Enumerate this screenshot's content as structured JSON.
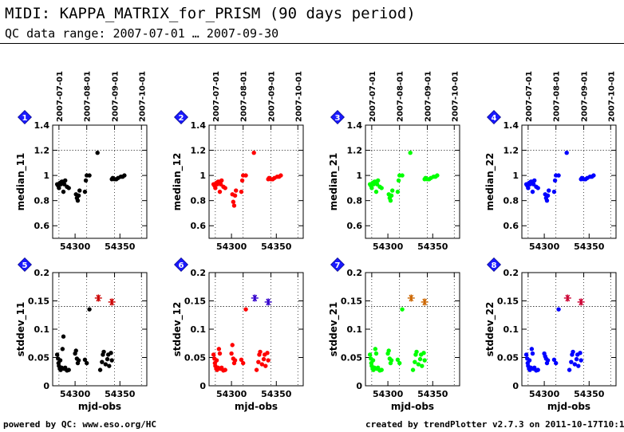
{
  "header": {
    "title": "MIDI: KAPPA_MATRIX_for_PRISM (90 days period)",
    "subtitle": "QC data range: 2007-07-01 … 2007-09-30"
  },
  "footer": {
    "left": "powered by QC: www.eso.org/HC",
    "right": "created by trendPlotter v2.7.3 on 2011-10-17T10:13:54"
  },
  "xaxis": {
    "label": "mjd-obs",
    "range": [
      54275,
      54380
    ],
    "ticks": [
      54300,
      54350
    ],
    "date_ticks": [
      {
        "label": "2007-07-01",
        "mjd": 54282
      },
      {
        "label": "2007-08-01",
        "mjd": 54313
      },
      {
        "label": "2007-09-01",
        "mjd": 54344
      },
      {
        "label": "2007-10-01",
        "mjd": 54374
      }
    ]
  },
  "chart_data": [
    {
      "type": "scatter",
      "badge": "1",
      "ylabel": "median_11",
      "color": "#000000",
      "ylim": [
        0.5,
        1.4
      ],
      "yticks": [
        "0.6",
        "0.8",
        "1",
        "1.2",
        "1.4"
      ],
      "ytick_values": [
        0.6,
        0.8,
        1.0,
        1.2,
        1.4
      ],
      "ref_line": 1.2,
      "points": [
        [
          54280,
          0.93
        ],
        [
          54281,
          0.92
        ],
        [
          54282,
          0.9
        ],
        [
          54283,
          0.94
        ],
        [
          54284,
          0.93
        ],
        [
          54285,
          0.95
        ],
        [
          54286,
          0.95
        ],
        [
          54287,
          0.87
        ],
        [
          54288,
          0.93
        ],
        [
          54289,
          0.96
        ],
        [
          54291,
          0.91
        ],
        [
          54293,
          0.9
        ],
        [
          54301,
          0.85
        ],
        [
          54302,
          0.82
        ],
        [
          54303,
          0.8
        ],
        [
          54304,
          0.84
        ],
        [
          54305,
          0.88
        ],
        [
          54311,
          0.87
        ],
        [
          54312,
          0.96
        ],
        [
          54313,
          1.0
        ],
        [
          54316,
          1.0
        ],
        [
          54325,
          1.18
        ],
        [
          54341,
          0.97
        ],
        [
          54342,
          0.98
        ],
        [
          54344,
          0.97
        ],
        [
          54346,
          0.97
        ],
        [
          54348,
          0.98
        ],
        [
          54351,
          0.99
        ],
        [
          54353,
          0.99
        ],
        [
          54355,
          1.0
        ]
      ],
      "stars": []
    },
    {
      "type": "scatter",
      "badge": "2",
      "ylabel": "median_12",
      "color": "#ff0000",
      "ylim": [
        0.5,
        1.4
      ],
      "yticks": [
        "0.6",
        "0.8",
        "1",
        "1.2",
        "1.4"
      ],
      "ytick_values": [
        0.6,
        0.8,
        1.0,
        1.2,
        1.4
      ],
      "ref_line": 1.2,
      "points": [
        [
          54280,
          0.93
        ],
        [
          54281,
          0.92
        ],
        [
          54282,
          0.9
        ],
        [
          54283,
          0.94
        ],
        [
          54284,
          0.93
        ],
        [
          54285,
          0.95
        ],
        [
          54286,
          0.95
        ],
        [
          54287,
          0.87
        ],
        [
          54288,
          0.93
        ],
        [
          54289,
          0.96
        ],
        [
          54291,
          0.91
        ],
        [
          54293,
          0.9
        ],
        [
          54301,
          0.85
        ],
        [
          54302,
          0.79
        ],
        [
          54303,
          0.76
        ],
        [
          54304,
          0.84
        ],
        [
          54305,
          0.88
        ],
        [
          54311,
          0.87
        ],
        [
          54312,
          0.96
        ],
        [
          54313,
          1.0
        ],
        [
          54316,
          1.0
        ],
        [
          54325,
          1.18
        ],
        [
          54341,
          0.97
        ],
        [
          54342,
          0.98
        ],
        [
          54344,
          0.97
        ],
        [
          54346,
          0.97
        ],
        [
          54348,
          0.98
        ],
        [
          54351,
          0.99
        ],
        [
          54353,
          0.99
        ],
        [
          54355,
          1.0
        ]
      ],
      "stars": []
    },
    {
      "type": "scatter",
      "badge": "3",
      "ylabel": "median_21",
      "color": "#00ff00",
      "ylim": [
        0.5,
        1.4
      ],
      "yticks": [
        "0.6",
        "0.8",
        "1",
        "1.2",
        "1.4"
      ],
      "ytick_values": [
        0.6,
        0.8,
        1.0,
        1.2,
        1.4
      ],
      "ref_line": 1.2,
      "points": [
        [
          54280,
          0.93
        ],
        [
          54281,
          0.92
        ],
        [
          54282,
          0.9
        ],
        [
          54283,
          0.94
        ],
        [
          54284,
          0.93
        ],
        [
          54285,
          0.95
        ],
        [
          54286,
          0.95
        ],
        [
          54287,
          0.87
        ],
        [
          54288,
          0.93
        ],
        [
          54289,
          0.96
        ],
        [
          54291,
          0.91
        ],
        [
          54293,
          0.9
        ],
        [
          54301,
          0.85
        ],
        [
          54302,
          0.82
        ],
        [
          54303,
          0.8
        ],
        [
          54304,
          0.84
        ],
        [
          54305,
          0.88
        ],
        [
          54311,
          0.87
        ],
        [
          54312,
          0.96
        ],
        [
          54313,
          1.0
        ],
        [
          54316,
          1.0
        ],
        [
          54325,
          1.18
        ],
        [
          54341,
          0.97
        ],
        [
          54342,
          0.98
        ],
        [
          54344,
          0.97
        ],
        [
          54346,
          0.97
        ],
        [
          54348,
          0.98
        ],
        [
          54351,
          0.99
        ],
        [
          54353,
          0.99
        ],
        [
          54355,
          1.0
        ]
      ],
      "stars": []
    },
    {
      "type": "scatter",
      "badge": "4",
      "ylabel": "median_22",
      "color": "#0000ff",
      "ylim": [
        0.5,
        1.4
      ],
      "yticks": [
        "0.6",
        "0.8",
        "1",
        "1.2",
        "1.4"
      ],
      "ytick_values": [
        0.6,
        0.8,
        1.0,
        1.2,
        1.4
      ],
      "ref_line": 1.2,
      "points": [
        [
          54280,
          0.93
        ],
        [
          54281,
          0.92
        ],
        [
          54282,
          0.9
        ],
        [
          54283,
          0.94
        ],
        [
          54284,
          0.93
        ],
        [
          54285,
          0.95
        ],
        [
          54286,
          0.95
        ],
        [
          54287,
          0.87
        ],
        [
          54288,
          0.93
        ],
        [
          54289,
          0.96
        ],
        [
          54291,
          0.91
        ],
        [
          54293,
          0.9
        ],
        [
          54301,
          0.85
        ],
        [
          54302,
          0.82
        ],
        [
          54303,
          0.8
        ],
        [
          54304,
          0.84
        ],
        [
          54305,
          0.88
        ],
        [
          54311,
          0.87
        ],
        [
          54312,
          0.96
        ],
        [
          54313,
          1.0
        ],
        [
          54316,
          1.0
        ],
        [
          54325,
          1.18
        ],
        [
          54341,
          0.97
        ],
        [
          54342,
          0.98
        ],
        [
          54344,
          0.97
        ],
        [
          54346,
          0.97
        ],
        [
          54348,
          0.98
        ],
        [
          54351,
          0.99
        ],
        [
          54353,
          0.99
        ],
        [
          54355,
          1.0
        ]
      ],
      "stars": []
    },
    {
      "type": "scatter",
      "badge": "5",
      "ylabel": "stddev_11",
      "color": "#000000",
      "star_color": "#cc0000",
      "ylim": [
        0,
        0.2
      ],
      "yticks": [
        "0",
        "0.05",
        "0.1",
        "0.15",
        "0.2"
      ],
      "ytick_values": [
        0,
        0.05,
        0.1,
        0.15,
        0.2
      ],
      "ref_line": 0.14,
      "points": [
        [
          54280,
          0.055
        ],
        [
          54281,
          0.048
        ],
        [
          54281.5,
          0.04
        ],
        [
          54282,
          0.035
        ],
        [
          54283,
          0.03
        ],
        [
          54283.5,
          0.045
        ],
        [
          54284,
          0.028
        ],
        [
          54285,
          0.032
        ],
        [
          54286,
          0.065
        ],
        [
          54287,
          0.087
        ],
        [
          54288,
          0.03
        ],
        [
          54289,
          0.032
        ],
        [
          54291,
          0.027
        ],
        [
          54293,
          0.028
        ],
        [
          54300,
          0.057
        ],
        [
          54301,
          0.062
        ],
        [
          54302,
          0.048
        ],
        [
          54303,
          0.04
        ],
        [
          54304,
          0.045
        ],
        [
          54311,
          0.046
        ],
        [
          54313,
          0.04
        ],
        [
          54316,
          0.135
        ],
        [
          54328,
          0.028
        ],
        [
          54330,
          0.042
        ],
        [
          54331,
          0.055
        ],
        [
          54332,
          0.06
        ],
        [
          54334,
          0.038
        ],
        [
          54336,
          0.047
        ],
        [
          54337,
          0.055
        ],
        [
          54338,
          0.035
        ],
        [
          54340,
          0.058
        ],
        [
          54341,
          0.045
        ]
      ],
      "stars": [
        [
          54326,
          0.155
        ],
        [
          54341,
          0.148
        ]
      ]
    },
    {
      "type": "scatter",
      "badge": "6",
      "ylabel": "stddev_12",
      "color": "#ff0000",
      "star_color": "#3300cc",
      "ylim": [
        0,
        0.2
      ],
      "yticks": [
        "0",
        "0.05",
        "0.1",
        "0.15",
        "0.2"
      ],
      "ytick_values": [
        0,
        0.05,
        0.1,
        0.15,
        0.2
      ],
      "ref_line": 0.14,
      "points": [
        [
          54280,
          0.055
        ],
        [
          54281,
          0.048
        ],
        [
          54281.5,
          0.04
        ],
        [
          54282,
          0.035
        ],
        [
          54283,
          0.03
        ],
        [
          54283.5,
          0.045
        ],
        [
          54284,
          0.028
        ],
        [
          54285,
          0.032
        ],
        [
          54286,
          0.065
        ],
        [
          54287,
          0.057
        ],
        [
          54288,
          0.03
        ],
        [
          54289,
          0.032
        ],
        [
          54291,
          0.027
        ],
        [
          54293,
          0.028
        ],
        [
          54300,
          0.057
        ],
        [
          54301,
          0.072
        ],
        [
          54302,
          0.048
        ],
        [
          54303,
          0.04
        ],
        [
          54304,
          0.045
        ],
        [
          54311,
          0.046
        ],
        [
          54313,
          0.04
        ],
        [
          54316,
          0.135
        ],
        [
          54328,
          0.028
        ],
        [
          54330,
          0.042
        ],
        [
          54331,
          0.055
        ],
        [
          54332,
          0.06
        ],
        [
          54334,
          0.038
        ],
        [
          54336,
          0.047
        ],
        [
          54337,
          0.055
        ],
        [
          54338,
          0.035
        ],
        [
          54340,
          0.058
        ],
        [
          54341,
          0.045
        ]
      ],
      "stars": [
        [
          54326,
          0.155
        ],
        [
          54341,
          0.148
        ]
      ]
    },
    {
      "type": "scatter",
      "badge": "7",
      "ylabel": "stddev_21",
      "color": "#00ff00",
      "star_color": "#cc6600",
      "ylim": [
        0,
        0.2
      ],
      "yticks": [
        "0",
        "0.05",
        "0.1",
        "0.15",
        "0.2"
      ],
      "ytick_values": [
        0,
        0.05,
        0.1,
        0.15,
        0.2
      ],
      "ref_line": 0.14,
      "points": [
        [
          54280,
          0.055
        ],
        [
          54281,
          0.048
        ],
        [
          54281.5,
          0.04
        ],
        [
          54282,
          0.035
        ],
        [
          54283,
          0.03
        ],
        [
          54283.5,
          0.045
        ],
        [
          54284,
          0.028
        ],
        [
          54285,
          0.032
        ],
        [
          54286,
          0.065
        ],
        [
          54287,
          0.057
        ],
        [
          54288,
          0.03
        ],
        [
          54289,
          0.032
        ],
        [
          54291,
          0.027
        ],
        [
          54293,
          0.028
        ],
        [
          54300,
          0.057
        ],
        [
          54301,
          0.062
        ],
        [
          54302,
          0.048
        ],
        [
          54303,
          0.04
        ],
        [
          54304,
          0.045
        ],
        [
          54311,
          0.046
        ],
        [
          54313,
          0.04
        ],
        [
          54316,
          0.135
        ],
        [
          54328,
          0.028
        ],
        [
          54330,
          0.042
        ],
        [
          54331,
          0.055
        ],
        [
          54332,
          0.06
        ],
        [
          54334,
          0.038
        ],
        [
          54336,
          0.047
        ],
        [
          54337,
          0.055
        ],
        [
          54338,
          0.035
        ],
        [
          54340,
          0.058
        ],
        [
          54341,
          0.045
        ]
      ],
      "stars": [
        [
          54326,
          0.155
        ],
        [
          54341,
          0.148
        ]
      ]
    },
    {
      "type": "scatter",
      "badge": "8",
      "ylabel": "stddev_22",
      "color": "#0000ff",
      "star_color": "#cc0033",
      "ylim": [
        0,
        0.2
      ],
      "yticks": [
        "0",
        "0.05",
        "0.1",
        "0.15",
        "0.2"
      ],
      "ytick_values": [
        0,
        0.05,
        0.1,
        0.15,
        0.2
      ],
      "ref_line": 0.14,
      "points": [
        [
          54280,
          0.055
        ],
        [
          54281,
          0.048
        ],
        [
          54281.5,
          0.04
        ],
        [
          54282,
          0.035
        ],
        [
          54283,
          0.03
        ],
        [
          54283.5,
          0.045
        ],
        [
          54284,
          0.028
        ],
        [
          54285,
          0.032
        ],
        [
          54286,
          0.065
        ],
        [
          54287,
          0.057
        ],
        [
          54288,
          0.03
        ],
        [
          54289,
          0.032
        ],
        [
          54291,
          0.027
        ],
        [
          54293,
          0.028
        ],
        [
          54300,
          0.057
        ],
        [
          54301,
          0.052
        ],
        [
          54302,
          0.048
        ],
        [
          54303,
          0.04
        ],
        [
          54304,
          0.045
        ],
        [
          54311,
          0.046
        ],
        [
          54313,
          0.04
        ],
        [
          54316,
          0.135
        ],
        [
          54328,
          0.028
        ],
        [
          54330,
          0.042
        ],
        [
          54331,
          0.055
        ],
        [
          54332,
          0.06
        ],
        [
          54334,
          0.038
        ],
        [
          54336,
          0.047
        ],
        [
          54337,
          0.055
        ],
        [
          54338,
          0.035
        ],
        [
          54340,
          0.058
        ],
        [
          54341,
          0.045
        ]
      ],
      "stars": [
        [
          54326,
          0.155
        ],
        [
          54341,
          0.148
        ]
      ]
    }
  ]
}
